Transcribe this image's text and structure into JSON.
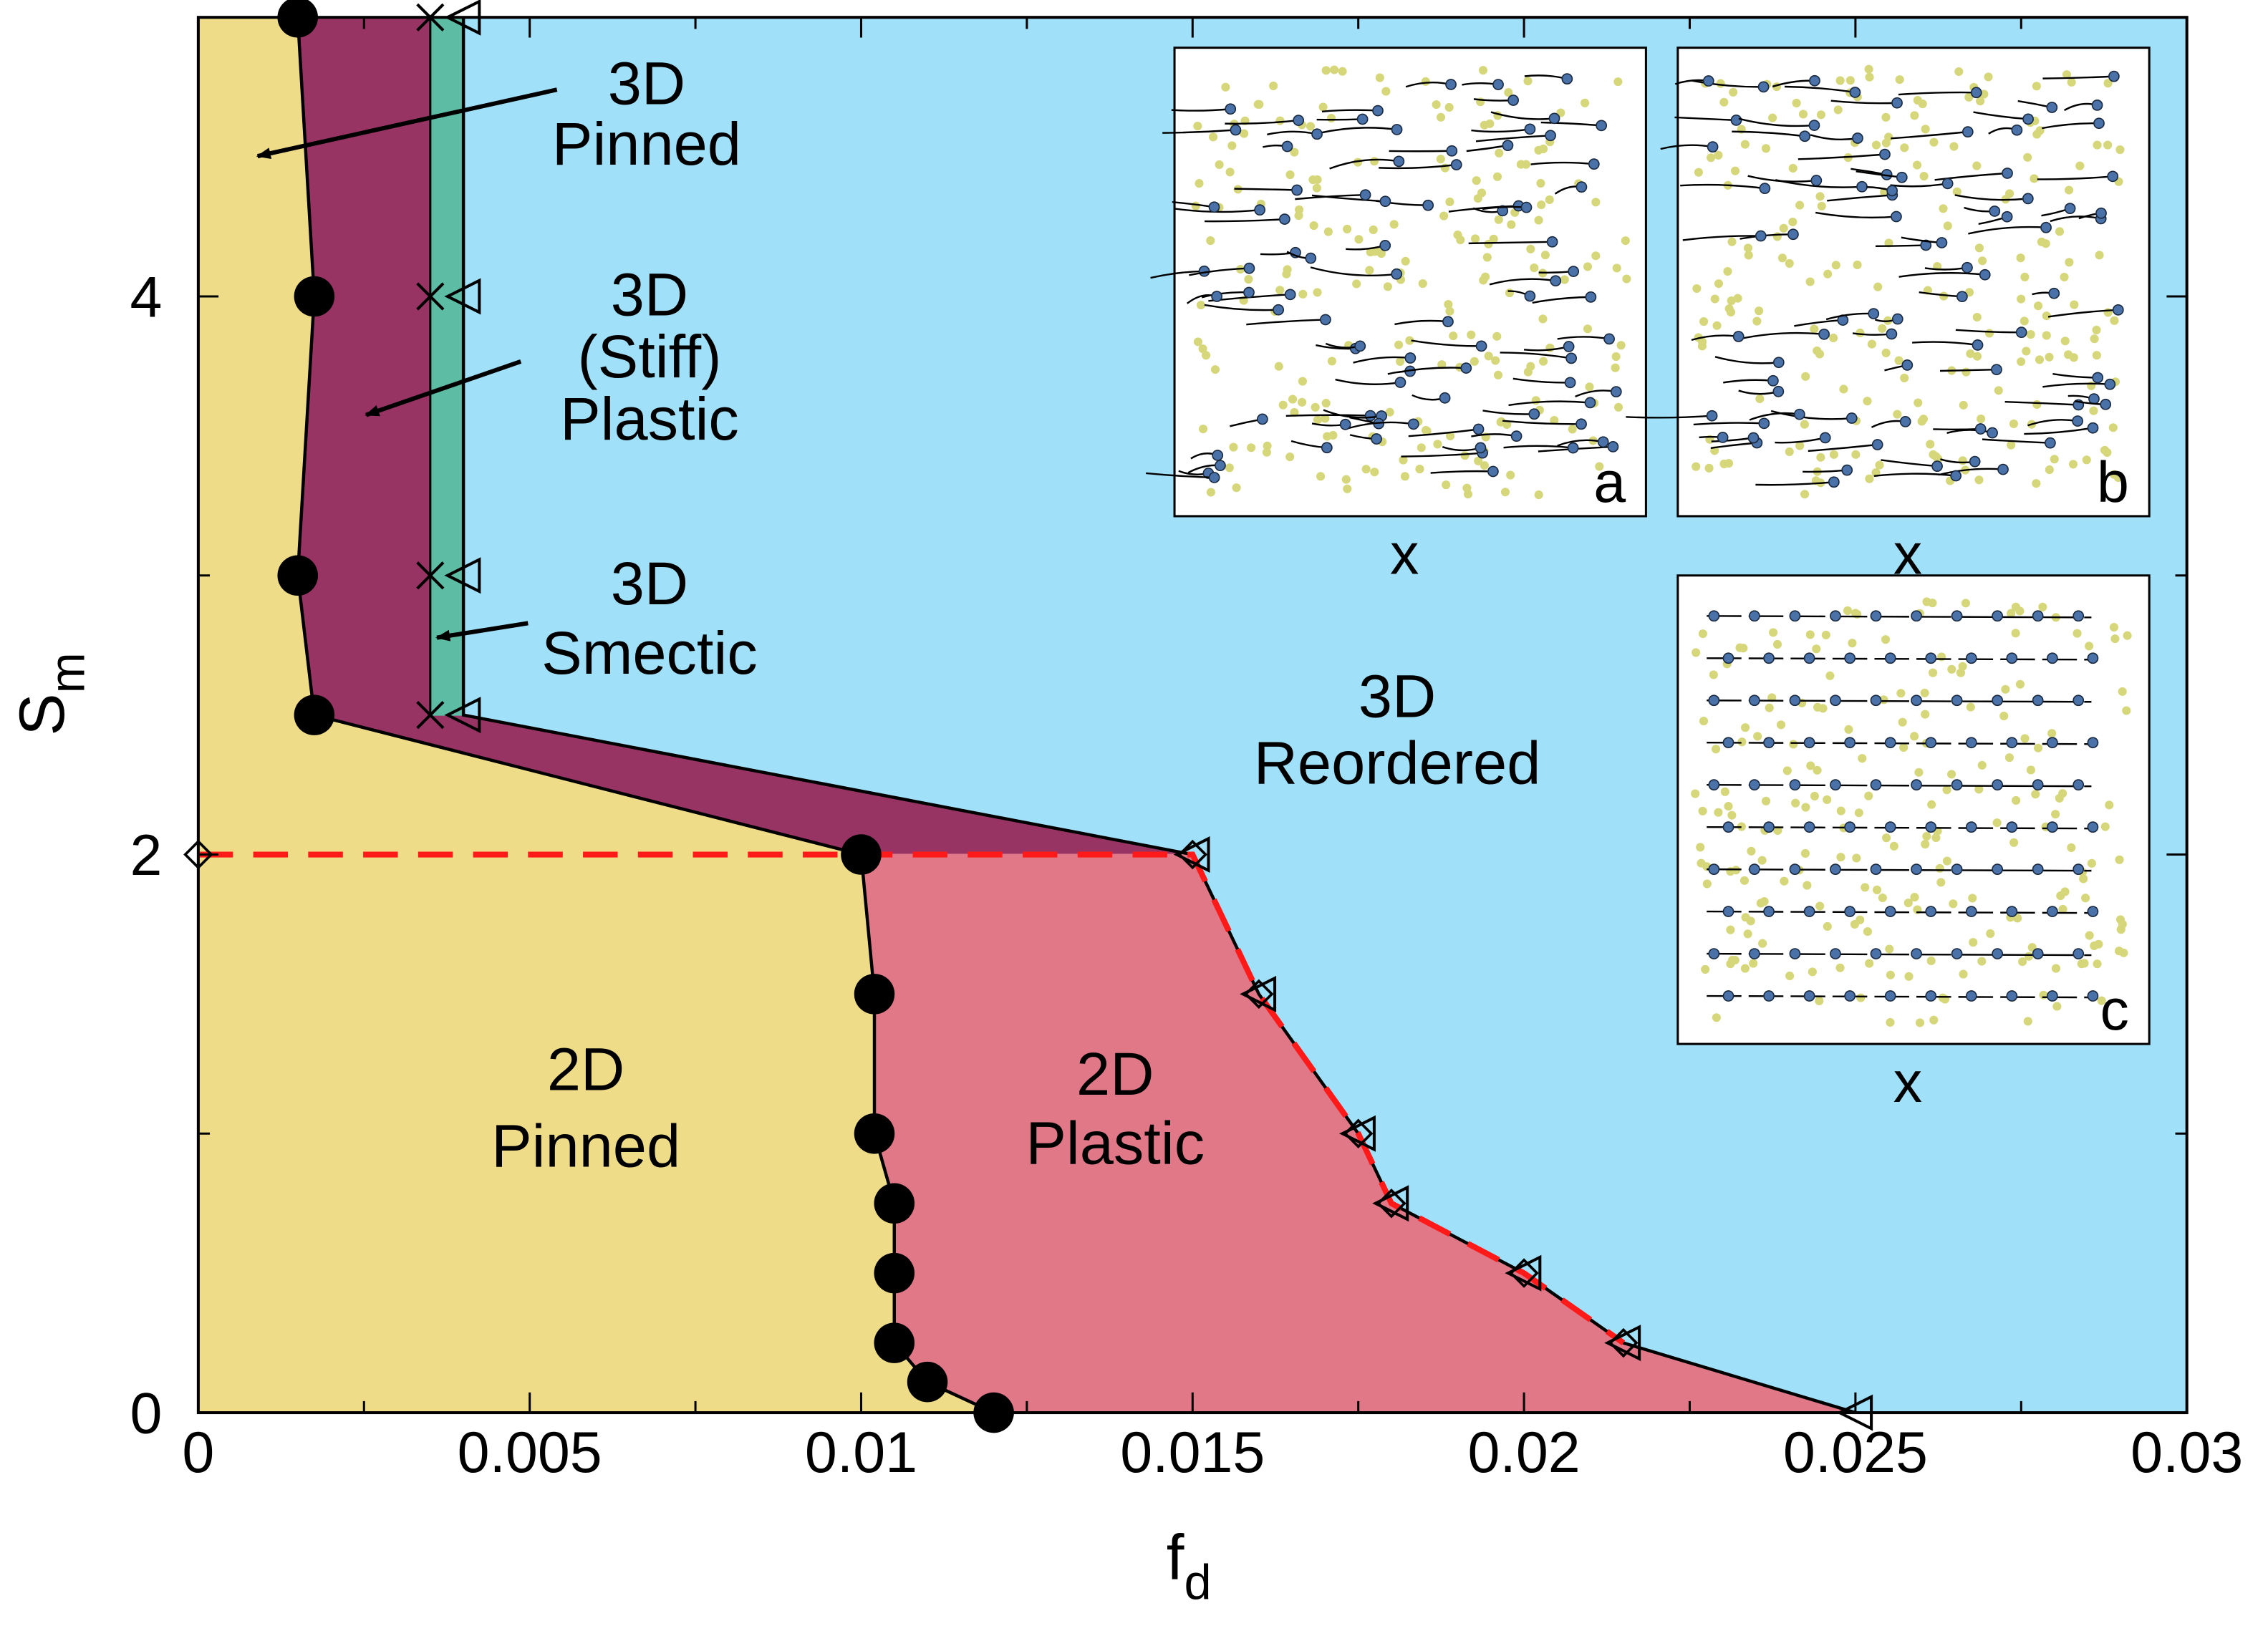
{
  "chart_data": {
    "type": "phase-diagram",
    "xlabel": {
      "main": "f",
      "sub": "d"
    },
    "ylabel": {
      "main": "S",
      "sub": "m"
    },
    "xlim": [
      0,
      0.03
    ],
    "ylim": [
      0,
      5
    ],
    "xticks": [
      0,
      0.005,
      0.01,
      0.015,
      0.02,
      0.025,
      0.03
    ],
    "yticks": [
      0,
      2,
      4
    ],
    "xminorticks": [
      0.0025,
      0.0075,
      0.0125,
      0.0175,
      0.0225,
      0.0275
    ],
    "yminorticks": [
      1,
      3,
      5
    ],
    "background_color": "#a0e0f8",
    "series": [
      {
        "marker": "circle",
        "color": "#000000",
        "x": [
          0.0015,
          0.00175,
          0.0015,
          0.00175,
          0.01,
          0.0102,
          0.0102,
          0.0105,
          0.0105,
          0.0105,
          0.011,
          0.012
        ],
        "values": [
          5,
          4,
          3,
          2.5,
          2,
          1.5,
          1,
          0.75,
          0.5,
          0.25,
          0.11,
          0
        ]
      },
      {
        "marker": "cross",
        "color": "#000000",
        "x": [
          0.0035,
          0.0035,
          0.0035,
          0.0035
        ],
        "values": [
          5,
          4,
          3,
          2.5
        ]
      },
      {
        "marker": "triangle",
        "color": "#000000",
        "x": [
          0.004,
          0.004,
          0.004,
          0.004,
          0.015,
          0.016,
          0.0175,
          0.018,
          0.02,
          0.0215,
          0.025
        ],
        "values": [
          5,
          4,
          3,
          2.5,
          2,
          1.5,
          1,
          0.75,
          0.5,
          0.25,
          0
        ]
      },
      {
        "marker": "diamond",
        "color": "#ff1a1a",
        "x": [
          0,
          0.015,
          0.016,
          0.0175,
          0.018,
          0.02,
          0.0215
        ],
        "values": [
          2,
          2,
          1.5,
          1,
          0.75,
          0.5,
          0.25
        ]
      }
    ],
    "regions": [
      {
        "lines": [
          "3D",
          "Pinned"
        ],
        "color": "#eedc88"
      },
      {
        "lines": [
          "3D",
          "(Stiff)",
          "Plastic"
        ],
        "color": "#983464"
      },
      {
        "lines": [
          "3D",
          "Smectic"
        ],
        "color": "#5cbca4"
      },
      {
        "lines": [
          "3D",
          "Reordered"
        ],
        "color": "#a0e0f8"
      },
      {
        "lines": [
          "2D",
          "Pinned"
        ],
        "color": "#eedc88"
      },
      {
        "lines": [
          "2D",
          "Plastic"
        ],
        "color": "#e07888"
      }
    ],
    "insets": [
      {
        "label": "a",
        "axis_label": "x"
      },
      {
        "label": "b",
        "axis_label": "x"
      },
      {
        "label": "c",
        "axis_label": "x"
      }
    ]
  }
}
